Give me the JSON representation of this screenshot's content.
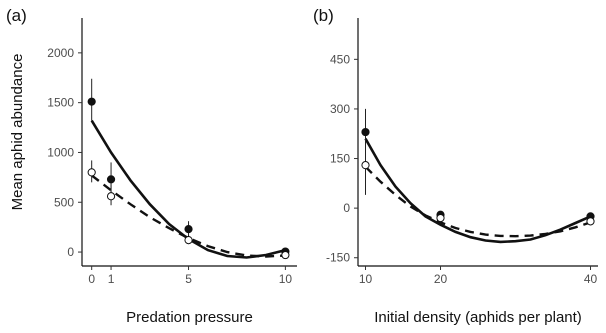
{
  "chart_data": [
    {
      "type": "scatter",
      "panel_label": "(a)",
      "title": "",
      "xlabel": "Predation pressure",
      "ylabel": "Mean aphid abundance",
      "xlim": [
        -0.5,
        10.6
      ],
      "ylim": [
        -140,
        2350
      ],
      "x_ticks": [
        0,
        1,
        5,
        10
      ],
      "y_ticks": [
        0,
        500,
        1000,
        1500,
        2000
      ],
      "grid": false,
      "legend": "none",
      "series": [
        {
          "marker": "filled-circle",
          "line_style": "solid",
          "points": [
            {
              "x": 0,
              "y": 1510,
              "err_low": 1320,
              "err_high": 1740
            },
            {
              "x": 1,
              "y": 730,
              "err_low": 560,
              "err_high": 900
            },
            {
              "x": 5,
              "y": 230,
              "err_low": 150,
              "err_high": 310
            },
            {
              "x": 10,
              "y": 5,
              "err_low": -20,
              "err_high": 40
            }
          ],
          "fit_curve": [
            {
              "x": 0,
              "y": 1320
            },
            {
              "x": 1,
              "y": 1000
            },
            {
              "x": 2,
              "y": 720
            },
            {
              "x": 3,
              "y": 480
            },
            {
              "x": 4,
              "y": 280
            },
            {
              "x": 5,
              "y": 130
            },
            {
              "x": 6,
              "y": 20
            },
            {
              "x": 7,
              "y": -40
            },
            {
              "x": 8,
              "y": -55
            },
            {
              "x": 9,
              "y": -30
            },
            {
              "x": 10,
              "y": 20
            }
          ]
        },
        {
          "marker": "open-circle",
          "line_style": "dashed",
          "points": [
            {
              "x": 0,
              "y": 800,
              "err_low": 700,
              "err_high": 920
            },
            {
              "x": 1,
              "y": 560,
              "err_low": 470,
              "err_high": 680
            },
            {
              "x": 5,
              "y": 120,
              "err_low": 80,
              "err_high": 170
            },
            {
              "x": 10,
              "y": -30,
              "err_low": -45,
              "err_high": -15
            }
          ],
          "fit_curve": [
            {
              "x": 0,
              "y": 770
            },
            {
              "x": 1,
              "y": 620
            },
            {
              "x": 2,
              "y": 480
            },
            {
              "x": 3,
              "y": 350
            },
            {
              "x": 4,
              "y": 240
            },
            {
              "x": 5,
              "y": 140
            },
            {
              "x": 6,
              "y": 60
            },
            {
              "x": 7,
              "y": 0
            },
            {
              "x": 8,
              "y": -35
            },
            {
              "x": 9,
              "y": -45
            },
            {
              "x": 10,
              "y": -35
            }
          ]
        }
      ]
    },
    {
      "type": "scatter",
      "panel_label": "(b)",
      "title": "",
      "xlabel": "Initial density (aphids per plant)",
      "ylabel": "",
      "xlim": [
        9.0,
        41.0
      ],
      "ylim": [
        -175,
        575
      ],
      "x_ticks": [
        10,
        20,
        40
      ],
      "y_ticks": [
        -150,
        0,
        150,
        300,
        450
      ],
      "grid": false,
      "legend": "none",
      "series": [
        {
          "marker": "filled-circle",
          "line_style": "solid",
          "points": [
            {
              "x": 10,
              "y": 230,
              "err_low": 160,
              "err_high": 300
            },
            {
              "x": 20,
              "y": -20,
              "err_low": -30,
              "err_high": -10
            },
            {
              "x": 40,
              "y": -25,
              "err_low": -35,
              "err_high": -15
            }
          ],
          "fit_curve": [
            {
              "x": 10,
              "y": 210
            },
            {
              "x": 12,
              "y": 130
            },
            {
              "x": 14,
              "y": 65
            },
            {
              "x": 16,
              "y": 15
            },
            {
              "x": 18,
              "y": -25
            },
            {
              "x": 20,
              "y": -50
            },
            {
              "x": 22,
              "y": -72
            },
            {
              "x": 24,
              "y": -88
            },
            {
              "x": 26,
              "y": -98
            },
            {
              "x": 28,
              "y": -102
            },
            {
              "x": 30,
              "y": -100
            },
            {
              "x": 32,
              "y": -95
            },
            {
              "x": 34,
              "y": -82
            },
            {
              "x": 36,
              "y": -65
            },
            {
              "x": 38,
              "y": -45
            },
            {
              "x": 40,
              "y": -25
            }
          ]
        },
        {
          "marker": "open-circle",
          "line_style": "dashed",
          "points": [
            {
              "x": 10,
              "y": 130,
              "err_low": 40,
              "err_high": 200
            },
            {
              "x": 20,
              "y": -30,
              "err_low": -40,
              "err_high": -20
            },
            {
              "x": 40,
              "y": -40,
              "err_low": -48,
              "err_high": -32
            }
          ],
          "fit_curve": [
            {
              "x": 10,
              "y": 125
            },
            {
              "x": 12,
              "y": 80
            },
            {
              "x": 14,
              "y": 40
            },
            {
              "x": 16,
              "y": 5
            },
            {
              "x": 18,
              "y": -22
            },
            {
              "x": 20,
              "y": -43
            },
            {
              "x": 22,
              "y": -60
            },
            {
              "x": 24,
              "y": -72
            },
            {
              "x": 26,
              "y": -80
            },
            {
              "x": 28,
              "y": -84
            },
            {
              "x": 30,
              "y": -85
            },
            {
              "x": 32,
              "y": -83
            },
            {
              "x": 34,
              "y": -78
            },
            {
              "x": 36,
              "y": -70
            },
            {
              "x": 38,
              "y": -58
            },
            {
              "x": 40,
              "y": -43
            }
          ]
        }
      ]
    }
  ]
}
